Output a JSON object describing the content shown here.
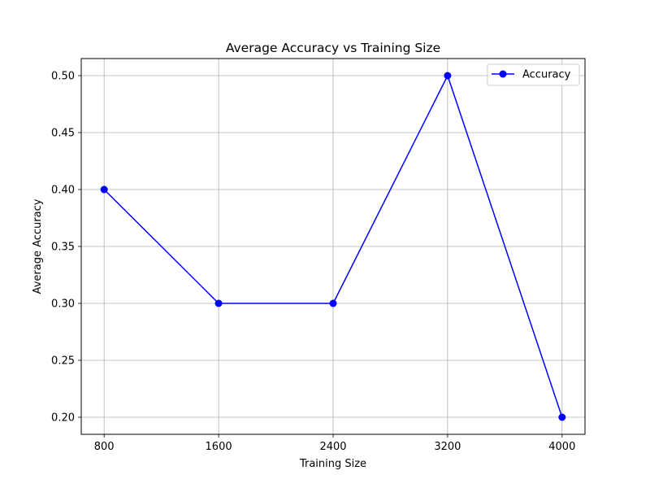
{
  "chart_data": {
    "type": "line",
    "title": "Average Accuracy vs Training Size",
    "xlabel": "Training Size",
    "ylabel": "Average Accuracy",
    "x": [
      800,
      1600,
      2400,
      3200,
      4000
    ],
    "series": [
      {
        "name": "Accuracy",
        "values": [
          0.4,
          0.3,
          0.3,
          0.5,
          0.2
        ],
        "color": "#0000ff",
        "marker": "circle"
      }
    ],
    "x_ticks": [
      "800",
      "1600",
      "2400",
      "3200",
      "4000"
    ],
    "y_ticks": [
      "0.20",
      "0.25",
      "0.30",
      "0.35",
      "0.40",
      "0.45",
      "0.50"
    ],
    "xlim": [
      640,
      4160
    ],
    "ylim": [
      0.185,
      0.515
    ],
    "grid": true,
    "legend_position": "upper right"
  }
}
